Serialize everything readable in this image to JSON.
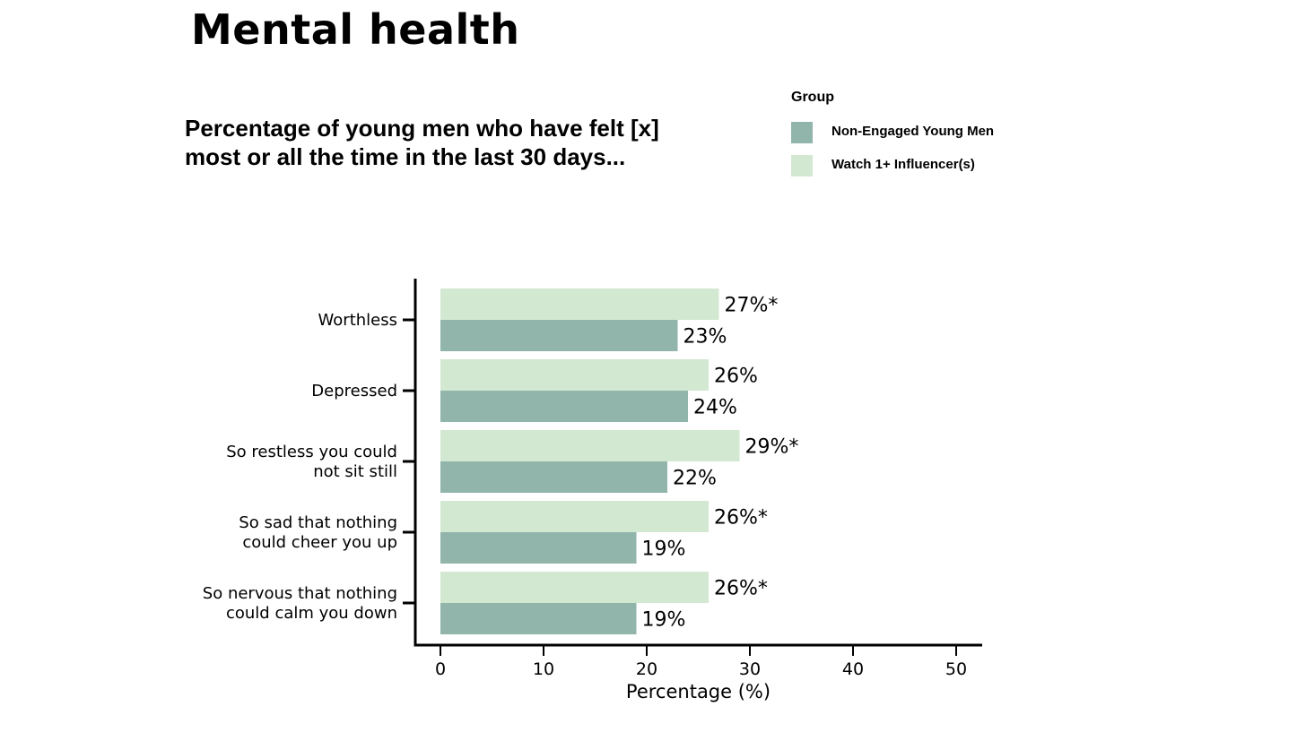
{
  "title": "Mental health",
  "subtitle": "Percentage of young men who have felt [x] most or all the time in the last 30 days...",
  "legend": {
    "title": "Group",
    "items": [
      {
        "label": "Non-Engaged Young Men",
        "color": "#91b5ab"
      },
      {
        "label": "Watch 1+ Influencer(s)",
        "color": "#d3e8d1"
      }
    ]
  },
  "chart_data": {
    "type": "bar",
    "orientation": "horizontal",
    "categories": [
      [
        "Worthless"
      ],
      [
        "Depressed"
      ],
      [
        "So restless you could",
        "not sit still"
      ],
      [
        "So sad that nothing",
        "could cheer you up"
      ],
      [
        "So nervous that nothing",
        "could calm you down"
      ]
    ],
    "series": [
      {
        "name": "Watch 1+ Influencer(s)",
        "color": "#d3e8d1",
        "values": [
          27,
          26,
          29,
          26,
          26
        ],
        "labels": [
          "27%*",
          "26%",
          "29%*",
          "26%*",
          "26%*"
        ]
      },
      {
        "name": "Non-Engaged Young Men",
        "color": "#91b5ab",
        "values": [
          23,
          24,
          22,
          19,
          19
        ],
        "labels": [
          "23%",
          "24%",
          "22%",
          "19%",
          "19%"
        ]
      }
    ],
    "xlabel": "Percentage (%)",
    "xlim": [
      0,
      50
    ],
    "xticks": [
      0,
      10,
      20,
      30,
      40,
      50
    ],
    "grid": false,
    "legend_position": "top-right"
  }
}
